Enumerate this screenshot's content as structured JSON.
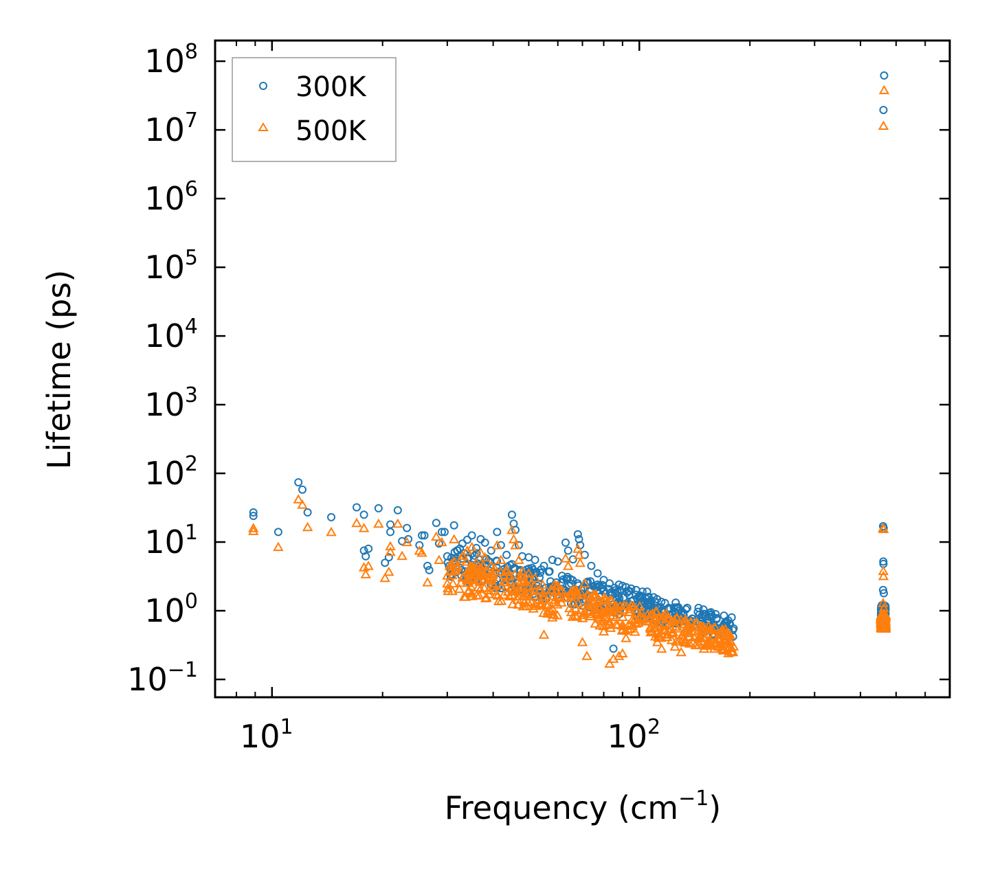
{
  "chart_data": {
    "type": "scatter",
    "title": "",
    "xlabel": "Frequency (cm",
    "xlabel_sup": "−1",
    "xlabel_end": ")",
    "ylabel": "Lifetime (ps)",
    "xscale": "log",
    "yscale": "log",
    "xlim": [
      7.0,
      700.0
    ],
    "ylim": [
      0.055,
      200000000
    ],
    "x_ticks": [
      {
        "value": 10,
        "base": "10",
        "exp": "1"
      },
      {
        "value": 100,
        "base": "10",
        "exp": "2"
      }
    ],
    "y_ticks": [
      {
        "value": 0.1,
        "base": "10",
        "exp": "−1"
      },
      {
        "value": 1,
        "base": "10",
        "exp": "0"
      },
      {
        "value": 10,
        "base": "10",
        "exp": "1"
      },
      {
        "value": 100,
        "base": "10",
        "exp": "2"
      },
      {
        "value": 1000,
        "base": "10",
        "exp": "3"
      },
      {
        "value": 10000,
        "base": "10",
        "exp": "4"
      },
      {
        "value": 100000,
        "base": "10",
        "exp": "5"
      },
      {
        "value": 1000000,
        "base": "10",
        "exp": "6"
      },
      {
        "value": 10000000,
        "base": "10",
        "exp": "7"
      },
      {
        "value": 100000000,
        "base": "10",
        "exp": "8"
      }
    ],
    "legend_position": "top-left",
    "series": [
      {
        "name": "300K",
        "marker": "circle",
        "color": "#1f77b4",
        "points": [
          [
            8.9,
            27
          ],
          [
            8.9,
            24
          ],
          [
            10.4,
            14
          ],
          [
            11.8,
            74
          ],
          [
            12.1,
            58
          ],
          [
            12.5,
            27
          ],
          [
            14.5,
            23
          ],
          [
            17.0,
            32
          ],
          [
            17.8,
            25
          ],
          [
            17.8,
            7.5
          ],
          [
            18.0,
            6.2
          ],
          [
            18.3,
            8.0
          ],
          [
            19.5,
            31
          ],
          [
            20.3,
            5.0
          ],
          [
            20.8,
            6.0
          ],
          [
            21.0,
            14
          ],
          [
            21.0,
            18
          ],
          [
            22.0,
            29
          ],
          [
            22.6,
            10.3
          ],
          [
            23.3,
            16
          ],
          [
            23.5,
            11
          ],
          [
            25.2,
            9
          ],
          [
            25.6,
            12.5
          ],
          [
            26.0,
            12.5
          ],
          [
            26.5,
            4.5
          ],
          [
            26.8,
            3.9
          ],
          [
            28.0,
            19
          ],
          [
            28.5,
            9.5
          ],
          [
            29.0,
            14
          ],
          [
            29.5,
            14
          ],
          [
            30.0,
            6.2
          ],
          [
            31.3,
            17.5
          ],
          [
            32.0,
            7.5
          ],
          [
            33.0,
            9.5
          ],
          [
            34.0,
            10.8
          ],
          [
            35.0,
            12.5
          ],
          [
            36.0,
            8.2
          ],
          [
            37.0,
            11
          ],
          [
            38.0,
            9.8
          ],
          [
            39.5,
            7.5
          ],
          [
            41.0,
            14
          ],
          [
            42.0,
            9
          ],
          [
            43.5,
            6.5
          ],
          [
            45.0,
            25
          ],
          [
            45.5,
            18.5
          ],
          [
            46.0,
            15
          ],
          [
            47.0,
            9
          ],
          [
            48.0,
            6.2
          ],
          [
            50.0,
            6
          ],
          [
            52.0,
            5.5
          ],
          [
            55.0,
            4.5
          ],
          [
            58.0,
            5.5
          ],
          [
            60.0,
            5.2
          ],
          [
            63.0,
            9.8
          ],
          [
            64.0,
            7.5
          ],
          [
            66.0,
            5.6
          ],
          [
            68.0,
            13
          ],
          [
            68.5,
            11
          ],
          [
            69.0,
            9
          ],
          [
            71.0,
            6.5
          ],
          [
            74.0,
            4.5
          ],
          [
            77.0,
            3.5
          ],
          [
            80.0,
            2.8
          ],
          [
            83.0,
            2.5
          ],
          [
            85.0,
            0.28
          ],
          [
            88.0,
            2.4
          ],
          [
            90.0,
            2.3
          ],
          [
            92.0,
            2.2
          ],
          [
            95.0,
            2.1
          ],
          [
            98.0,
            2.0
          ],
          [
            102.0,
            1.9
          ],
          [
            105.0,
            1.9
          ],
          [
            108.0,
            1.2
          ],
          [
            112.0,
            1.1
          ],
          [
            115.0,
            1.0
          ],
          [
            120.0,
            1.05
          ],
          [
            125.0,
            0.95
          ],
          [
            130.0,
            0.95
          ],
          [
            135.0,
            1.1
          ],
          [
            140.0,
            0.7
          ],
          [
            145.0,
            1.1
          ],
          [
            150.0,
            0.9
          ],
          [
            155.0,
            0.55
          ],
          [
            160.0,
            0.6
          ],
          [
            165.0,
            0.55
          ],
          [
            170.0,
            0.85
          ],
          [
            175.0,
            0.5
          ],
          [
            180.0,
            0.42
          ],
          [
            464.0,
            62000000
          ],
          [
            462.0,
            19500000
          ],
          [
            461.0,
            17
          ],
          [
            462.5,
            16
          ],
          [
            461.5,
            5.2
          ],
          [
            462.0,
            4.8
          ],
          [
            461.0,
            2.0
          ],
          [
            463.0,
            1.8
          ],
          [
            461.5,
            1.2
          ],
          [
            462.5,
            0.95
          ],
          [
            461.0,
            0.78
          ],
          [
            462.0,
            0.62
          ]
        ]
      },
      {
        "name": "500K",
        "marker": "triangle",
        "color": "#ff7f0e",
        "points": [
          [
            8.9,
            16
          ],
          [
            8.9,
            14.5
          ],
          [
            10.4,
            8.5
          ],
          [
            11.8,
            42
          ],
          [
            12.1,
            35
          ],
          [
            12.5,
            16.5
          ],
          [
            14.5,
            14
          ],
          [
            17.0,
            19
          ],
          [
            17.8,
            16
          ],
          [
            17.8,
            4.3
          ],
          [
            18.0,
            3.4
          ],
          [
            18.3,
            4.5
          ],
          [
            19.5,
            18.5
          ],
          [
            20.3,
            3.0
          ],
          [
            20.8,
            3.7
          ],
          [
            21.0,
            7.2
          ],
          [
            21.0,
            8.7
          ],
          [
            22.0,
            18.5
          ],
          [
            22.6,
            6.3
          ],
          [
            23.3,
            10
          ],
          [
            25.2,
            7.5
          ],
          [
            25.6,
            7.0
          ],
          [
            26.5,
            2.6
          ],
          [
            28.0,
            12
          ],
          [
            28.5,
            5.5
          ],
          [
            29.0,
            10
          ],
          [
            30.0,
            2.5
          ],
          [
            31.3,
            11
          ],
          [
            32.0,
            4.5
          ],
          [
            33.0,
            6.3
          ],
          [
            34.0,
            7.5
          ],
          [
            35.0,
            8.5
          ],
          [
            36.0,
            5
          ],
          [
            37.0,
            7
          ],
          [
            38.0,
            6
          ],
          [
            39.5,
            4.5
          ],
          [
            41.0,
            9
          ],
          [
            42.0,
            5.5
          ],
          [
            43.5,
            4
          ],
          [
            45.0,
            15
          ],
          [
            45.5,
            11
          ],
          [
            46.0,
            9
          ],
          [
            47.0,
            5.5
          ],
          [
            48.0,
            3.8
          ],
          [
            50.0,
            3.5
          ],
          [
            52.0,
            3.0
          ],
          [
            55.0,
            0.45
          ],
          [
            58.0,
            0.8
          ],
          [
            60.0,
            1.6
          ],
          [
            63.0,
            5.8
          ],
          [
            64.0,
            4.5
          ],
          [
            66.0,
            2.0
          ],
          [
            68.0,
            8
          ],
          [
            68.5,
            6.5
          ],
          [
            69.0,
            5
          ],
          [
            70.0,
            0.35
          ],
          [
            71.0,
            2.5
          ],
          [
            72.0,
            0.22
          ],
          [
            74.0,
            1.2
          ],
          [
            77.0,
            0.9
          ],
          [
            80.0,
            0.5
          ],
          [
            83.0,
            0.17
          ],
          [
            85.0,
            0.2
          ],
          [
            88.0,
            0.22
          ],
          [
            90.0,
            0.24
          ],
          [
            92.0,
            0.4
          ],
          [
            95.0,
            0.55
          ],
          [
            98.0,
            0.65
          ],
          [
            102.0,
            0.75
          ],
          [
            105.0,
            0.7
          ],
          [
            108.0,
            0.5
          ],
          [
            112.0,
            0.35
          ],
          [
            115.0,
            0.28
          ],
          [
            120.0,
            0.45
          ],
          [
            125.0,
            0.3
          ],
          [
            130.0,
            0.25
          ],
          [
            135.0,
            0.55
          ],
          [
            140.0,
            0.35
          ],
          [
            145.0,
            0.4
          ],
          [
            150.0,
            0.28
          ],
          [
            155.0,
            0.32
          ],
          [
            160.0,
            0.28
          ],
          [
            165.0,
            0.3
          ],
          [
            170.0,
            0.5
          ],
          [
            175.0,
            0.3
          ],
          [
            180.0,
            0.25
          ],
          [
            464.0,
            38000000
          ],
          [
            462.0,
            11500000
          ],
          [
            461.0,
            16
          ],
          [
            462.5,
            15.5
          ],
          [
            461.5,
            3.8
          ],
          [
            462.0,
            3.2
          ],
          [
            461.0,
            1.3
          ],
          [
            463.0,
            1.1
          ],
          [
            461.5,
            0.8
          ],
          [
            462.5,
            0.65
          ],
          [
            461.0,
            0.58
          ],
          [
            462.0,
            0.55
          ]
        ]
      }
    ],
    "bands": [
      {
        "series": "300K",
        "from": 30,
        "to": 182,
        "lo_start": 3.0,
        "hi_start": 9.0,
        "lo_end": 0.38,
        "hi_end": 0.8
      },
      {
        "series": "500K",
        "from": 30,
        "to": 182,
        "lo_start": 1.8,
        "hi_start": 6.5,
        "lo_end": 0.23,
        "hi_end": 0.5
      },
      {
        "series": "300K",
        "from": 455,
        "to": 468,
        "lo_start": 0.6,
        "hi_start": 1.2,
        "lo_end": 0.6,
        "hi_end": 1.2
      },
      {
        "series": "500K",
        "from": 455,
        "to": 468,
        "lo_start": 0.55,
        "hi_start": 0.9,
        "lo_end": 0.55,
        "hi_end": 0.9
      }
    ]
  }
}
